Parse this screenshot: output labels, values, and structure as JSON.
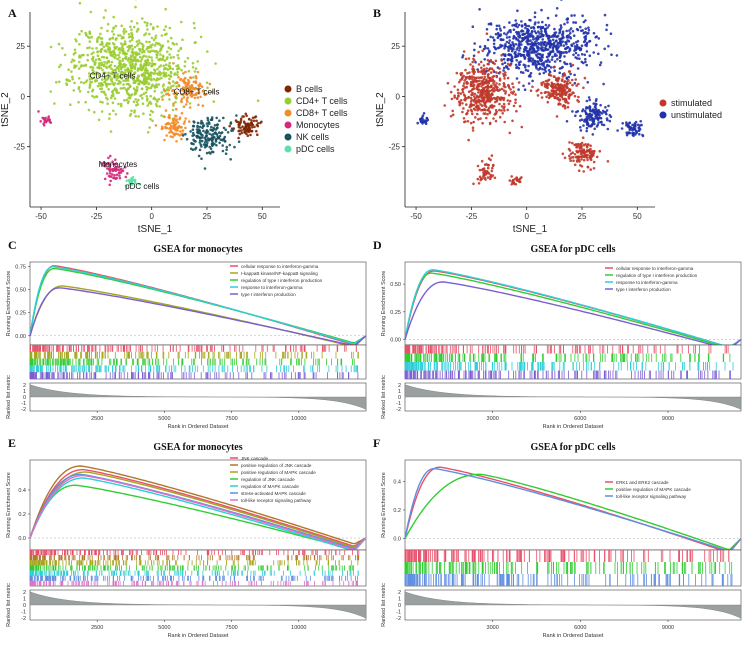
{
  "panels": {
    "A": "A",
    "B": "B",
    "C": "C",
    "D": "D",
    "E": "E",
    "F": "F"
  },
  "colors": {
    "B cells": "#7f2704",
    "CD4+ T cells": "#9acd32",
    "CD8+ T cells": "#f28c28",
    "Monocytes": "#d6287a",
    "NK cells": "#17525f",
    "pDC cells": "#5fe0a8",
    "stimulated": "#c0392b",
    "unstimulated": "#2233aa",
    "gsea_red": "#e8506a",
    "gsea_olive": "#a5a520",
    "gsea_green": "#33cc33",
    "gsea_cyan": "#2ccfd6",
    "gsea_purple": "#7a5fd0",
    "gsea_brown": "#b0782a",
    "gsea_blue": "#5f8fe0",
    "gsea_pink": "#e070c8"
  },
  "chart_data": [
    {
      "id": "A",
      "type": "scatter",
      "title": "",
      "xlabel": "tSNE_1",
      "ylabel": "tSNE_2",
      "xlim": [
        -55,
        58
      ],
      "ylim": [
        -55,
        42
      ],
      "xticks": [
        "-50",
        "-25",
        "0",
        "25",
        "50"
      ],
      "xtick_values": [
        -50,
        -25,
        0,
        25,
        50
      ],
      "yticks": [
        "25",
        "0",
        "-25"
      ],
      "ytick_values": [
        25,
        0,
        -25
      ],
      "legend": [
        "B cells",
        "CD4+ T cells",
        "CD8+ T cells",
        "Monocytes",
        "NK cells",
        "pDC cells"
      ],
      "clusters": [
        {
          "name": "CD4+ T cells",
          "cx": -10,
          "cy": 15,
          "rx": 28,
          "ry": 24,
          "n": 900
        },
        {
          "name": "CD8+ T cells",
          "cx": 17,
          "cy": 3,
          "rx": 10,
          "ry": 8,
          "n": 120
        },
        {
          "name": "CD8+ T cells",
          "cx": 10,
          "cy": -15,
          "rx": 8,
          "ry": 7,
          "n": 80
        },
        {
          "name": "NK cells",
          "cx": 26,
          "cy": -20,
          "rx": 10,
          "ry": 11,
          "n": 180
        },
        {
          "name": "B cells",
          "cx": 43,
          "cy": -15,
          "rx": 6,
          "ry": 6,
          "n": 90
        },
        {
          "name": "Monocytes",
          "cx": -17,
          "cy": -37,
          "rx": 5,
          "ry": 6,
          "n": 60
        },
        {
          "name": "Monocytes",
          "cx": -47,
          "cy": -12,
          "rx": 3,
          "ry": 3,
          "n": 25
        },
        {
          "name": "pDC cells",
          "cx": -9,
          "cy": -42,
          "rx": 3,
          "ry": 3,
          "n": 25
        }
      ],
      "annotations": [
        {
          "text": "CD4+ T cells",
          "x": -28,
          "y": 9
        },
        {
          "text": "CD8+ T cells",
          "x": 10,
          "y": 1
        },
        {
          "text": "Monocytes",
          "x": -24,
          "y": -35
        },
        {
          "text": "pDC cells",
          "x": -12,
          "y": -46
        }
      ]
    },
    {
      "id": "B",
      "type": "scatter",
      "title": "",
      "xlabel": "tSNE_1",
      "ylabel": "tSNE_2",
      "xlim": [
        -55,
        58
      ],
      "ylim": [
        -55,
        42
      ],
      "xticks": [
        "-50",
        "-25",
        "0",
        "25",
        "50"
      ],
      "xtick_values": [
        -50,
        -25,
        0,
        25,
        50
      ],
      "yticks": [
        "25",
        "0",
        "-25"
      ],
      "ytick_values": [
        25,
        0,
        -25
      ],
      "legend": [
        "stimulated",
        "unstimulated"
      ],
      "clusters": [
        {
          "name": "unstimulated",
          "cx": 5,
          "cy": 25,
          "rx": 28,
          "ry": 16,
          "n": 700
        },
        {
          "name": "stimulated",
          "cx": -20,
          "cy": 2,
          "rx": 14,
          "ry": 16,
          "n": 450
        },
        {
          "name": "stimulated",
          "cx": 15,
          "cy": 3,
          "rx": 10,
          "ry": 9,
          "n": 200
        },
        {
          "name": "unstimulated",
          "cx": 30,
          "cy": -10,
          "rx": 8,
          "ry": 8,
          "n": 140
        },
        {
          "name": "stimulated",
          "cx": 25,
          "cy": -28,
          "rx": 8,
          "ry": 8,
          "n": 120
        },
        {
          "name": "unstimulated",
          "cx": 48,
          "cy": -16,
          "rx": 5,
          "ry": 5,
          "n": 60
        },
        {
          "name": "unstimulated",
          "cx": -47,
          "cy": -12,
          "rx": 3,
          "ry": 3,
          "n": 25
        },
        {
          "name": "stimulated",
          "cx": -18,
          "cy": -37,
          "rx": 5,
          "ry": 6,
          "n": 50
        },
        {
          "name": "stimulated",
          "cx": -5,
          "cy": -42,
          "rx": 3,
          "ry": 3,
          "n": 25
        }
      ]
    },
    {
      "id": "C",
      "type": "line",
      "title": "GSEA for monocytes",
      "ylabel": "Running Enrichment Score",
      "xlabel": "Rank in Ordered Dataset",
      "ylabel2": "Ranked list metric",
      "xlim": [
        0,
        12500
      ],
      "ylim": [
        -0.1,
        0.8
      ],
      "yticks": [
        "0.75",
        "0.50",
        "0.25",
        "0.00"
      ],
      "ytick_values": [
        0.75,
        0.5,
        0.25,
        0.0
      ],
      "xticks": [
        "2500",
        "5000",
        "7500",
        "10000"
      ],
      "xtick_values": [
        2500,
        5000,
        7500,
        10000
      ],
      "y2ticks": [
        "2",
        "1",
        "0",
        "-1",
        "-2"
      ],
      "series": [
        {
          "name": "cellular response to interferon-gamma",
          "color": "#e8506a",
          "peak": 0.76,
          "peak_x": 900,
          "end": -0.05
        },
        {
          "name": "I-kappaB kinase/NF-kappaB signaling",
          "color": "#a5a520",
          "peak": 0.54,
          "peak_x": 1200,
          "end": -0.07
        },
        {
          "name": "regulation of type I interferon production",
          "color": "#33cc33",
          "peak": 0.73,
          "peak_x": 900,
          "end": -0.03
        },
        {
          "name": "response to interferon-gamma",
          "color": "#2ccfd6",
          "peak": 0.75,
          "peak_x": 850,
          "end": -0.04
        },
        {
          "name": "type I interferon production",
          "color": "#7a5fd0",
          "peak": 0.52,
          "peak_x": 1100,
          "end": -0.06
        }
      ]
    },
    {
      "id": "D",
      "type": "line",
      "title": "GSEA for pDC cells",
      "ylabel": "Running Enrichment Score",
      "xlabel": "Rank in Ordered Dataset",
      "ylabel2": "Ranked list metric",
      "xlim": [
        0,
        11500
      ],
      "ylim": [
        -0.05,
        0.7
      ],
      "yticks": [
        "0.50",
        "0.25",
        "0.00"
      ],
      "ytick_values": [
        0.5,
        0.25,
        0.0
      ],
      "xticks": [
        "3000",
        "6000",
        "9000"
      ],
      "xtick_values": [
        3000,
        6000,
        9000
      ],
      "y2ticks": [
        "2",
        "1",
        "0",
        "-1",
        "-2"
      ],
      "series": [
        {
          "name": "cellular response to interferon-gamma",
          "color": "#e8506a",
          "peak": 0.62,
          "peak_x": 1000,
          "end": -0.02
        },
        {
          "name": "regulation of type I interferon production",
          "color": "#33cc33",
          "peak": 0.6,
          "peak_x": 900,
          "end": -0.03
        },
        {
          "name": "response to interferon-gamma",
          "color": "#2ccfd6",
          "peak": 0.63,
          "peak_x": 950,
          "end": -0.02
        },
        {
          "name": "type I interferon production",
          "color": "#7a5fd0",
          "peak": 0.52,
          "peak_x": 1300,
          "end": -0.04
        }
      ]
    },
    {
      "id": "E",
      "type": "line",
      "title": "GSEA for monocytes",
      "ylabel": "Running Enrichment Score",
      "xlabel": "Rank in Ordered Dataset",
      "ylabel2": "Ranked list metric",
      "xlim": [
        0,
        12500
      ],
      "ylim": [
        -0.1,
        0.65
      ],
      "yticks": [
        "0.4",
        "0.2",
        "0.0"
      ],
      "ytick_values": [
        0.4,
        0.2,
        0.0
      ],
      "xticks": [
        "2500",
        "5000",
        "7500",
        "10000"
      ],
      "xtick_values": [
        2500,
        5000,
        7500,
        10000
      ],
      "y2ticks": [
        "2",
        "1",
        "0",
        "-1",
        "-2"
      ],
      "series": [
        {
          "name": "JNK cascade",
          "color": "#e8506a",
          "peak": 0.57,
          "peak_x": 2000,
          "end": -0.02
        },
        {
          "name": "positive regulation of JNK cascade",
          "color": "#b0782a",
          "peak": 0.6,
          "peak_x": 1900,
          "end": 0.0
        },
        {
          "name": "positive regulation of MAPK cascade",
          "color": "#a5a520",
          "peak": 0.55,
          "peak_x": 2100,
          "end": -0.03
        },
        {
          "name": "regulation of JNK cascade",
          "color": "#33cc33",
          "peak": 0.44,
          "peak_x": 1700,
          "end": -0.05
        },
        {
          "name": "regulation of MAPK cascade",
          "color": "#2ccfd6",
          "peak": 0.5,
          "peak_x": 2000,
          "end": -0.06
        },
        {
          "name": "stress-activated MAPK cascade",
          "color": "#5f8fe0",
          "peak": 0.53,
          "peak_x": 1900,
          "end": -0.04
        },
        {
          "name": "toll-like receptor signaling pathway",
          "color": "#e070c8",
          "peak": 0.52,
          "peak_x": 2000,
          "end": -0.05
        }
      ]
    },
    {
      "id": "F",
      "type": "line",
      "title": "GSEA for pDC cells",
      "ylabel": "Running Enrichment Score",
      "xlabel": "Rank in Ordered Dataset",
      "ylabel2": "Ranked list metric",
      "xlim": [
        0,
        11500
      ],
      "ylim": [
        -0.08,
        0.55
      ],
      "yticks": [
        "0.4",
        "0.2",
        "0.0"
      ],
      "ytick_values": [
        0.4,
        0.2,
        0.0
      ],
      "xticks": [
        "3000",
        "6000",
        "9000"
      ],
      "xtick_values": [
        3000,
        6000,
        9000
      ],
      "y2ticks": [
        "2",
        "1",
        "0",
        "-1",
        "-2"
      ],
      "series": [
        {
          "name": "ERK1 and ERK2 cascade",
          "color": "#e8506a",
          "peak": 0.5,
          "peak_x": 1200,
          "end": -0.05
        },
        {
          "name": "positive regulation of MAPK cascade",
          "color": "#33cc33",
          "peak": 0.45,
          "peak_x": 2600,
          "end": -0.03
        },
        {
          "name": "toll-like receptor signaling pathway",
          "color": "#5f8fe0",
          "peak": 0.49,
          "peak_x": 1000,
          "end": -0.04
        }
      ]
    }
  ]
}
